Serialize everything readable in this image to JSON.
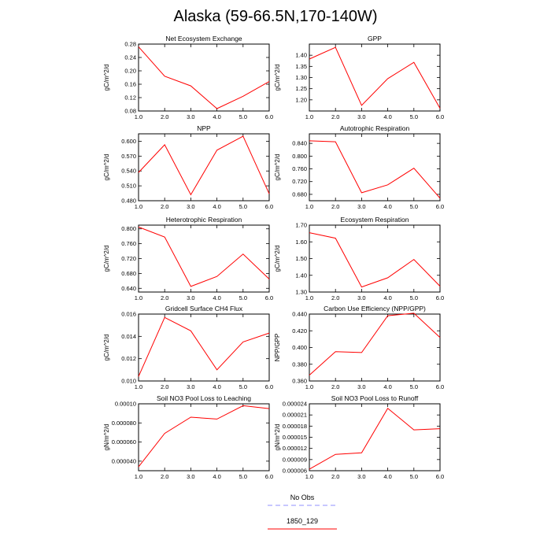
{
  "title": "Alaska (59-66.5N,170-140W)",
  "colors": {
    "series": "#ff0000",
    "no_obs": "#8f8fff",
    "axis": "#000000"
  },
  "legend": {
    "entries": [
      {
        "label": "No Obs",
        "color": "#8f8fff",
        "style": "dashed"
      },
      {
        "label": "1850_129",
        "color": "#ff0000",
        "style": "solid"
      }
    ]
  },
  "chart_data": [
    {
      "type": "line",
      "title": "Net Ecosystem Exchange",
      "ylabel": "gC/m^2/d",
      "x": [
        1,
        2,
        3,
        4,
        5,
        6
      ],
      "xlim": [
        1,
        6
      ],
      "xticks": [
        "1.0",
        "2.0",
        "3.0",
        "4.0",
        "5.0",
        "6.0"
      ],
      "ylim": [
        0.08,
        0.28
      ],
      "yticks": [
        "0.08",
        "0.12",
        "0.16",
        "0.20",
        "0.24",
        "0.28"
      ],
      "series": [
        {
          "name": "1850_129",
          "values": [
            0.272,
            0.184,
            0.155,
            0.087,
            0.124,
            0.168
          ]
        }
      ]
    },
    {
      "type": "line",
      "title": "GPP",
      "ylabel": "gC/m^2/d",
      "x": [
        1,
        2,
        3,
        4,
        5,
        6
      ],
      "xlim": [
        1,
        6
      ],
      "xticks": [
        "1.0",
        "2.0",
        "3.0",
        "4.0",
        "5.0",
        "6.0"
      ],
      "ylim": [
        1.15,
        1.45
      ],
      "yticks": [
        "1.20",
        "1.25",
        "1.30",
        "1.35",
        "1.40"
      ],
      "series": [
        {
          "name": "1850_129",
          "values": [
            1.383,
            1.435,
            1.175,
            1.295,
            1.368,
            1.162
          ]
        }
      ]
    },
    {
      "type": "line",
      "title": "NPP",
      "ylabel": "gC/m^2/d",
      "x": [
        1,
        2,
        3,
        4,
        5,
        6
      ],
      "xlim": [
        1,
        6
      ],
      "xticks": [
        "1.0",
        "2.0",
        "3.0",
        "4.0",
        "5.0",
        "6.0"
      ],
      "ylim": [
        0.48,
        0.615
      ],
      "yticks": [
        "0.480",
        "0.510",
        "0.540",
        "0.570",
        "0.600"
      ],
      "series": [
        {
          "name": "1850_129",
          "values": [
            0.537,
            0.593,
            0.492,
            0.582,
            0.61,
            0.494
          ]
        }
      ]
    },
    {
      "type": "line",
      "title": "Autotrophic Respiration",
      "ylabel": "gC/m^2/d",
      "x": [
        1,
        2,
        3,
        4,
        5,
        6
      ],
      "xlim": [
        1,
        6
      ],
      "xticks": [
        "1.0",
        "2.0",
        "3.0",
        "4.0",
        "5.0",
        "6.0"
      ],
      "ylim": [
        0.66,
        0.87
      ],
      "yticks": [
        "0.680",
        "0.720",
        "0.760",
        "0.800",
        "0.840"
      ],
      "series": [
        {
          "name": "1850_129",
          "values": [
            0.848,
            0.845,
            0.685,
            0.71,
            0.762,
            0.668
          ]
        }
      ]
    },
    {
      "type": "line",
      "title": "Heterotrophic Respiration",
      "ylabel": "gC/m^2/d",
      "x": [
        1,
        2,
        3,
        4,
        5,
        6
      ],
      "xlim": [
        1,
        6
      ],
      "xticks": [
        "1.0",
        "2.0",
        "3.0",
        "4.0",
        "5.0",
        "6.0"
      ],
      "ylim": [
        0.63,
        0.81
      ],
      "yticks": [
        "0.640",
        "0.680",
        "0.720",
        "0.760",
        "0.800"
      ],
      "series": [
        {
          "name": "1850_129",
          "values": [
            0.805,
            0.778,
            0.645,
            0.672,
            0.732,
            0.665
          ]
        }
      ]
    },
    {
      "type": "line",
      "title": "Ecosystem Respiration",
      "ylabel": "gC/m^2/d",
      "x": [
        1,
        2,
        3,
        4,
        5,
        6
      ],
      "xlim": [
        1,
        6
      ],
      "xticks": [
        "1.0",
        "2.0",
        "3.0",
        "4.0",
        "5.0",
        "6.0"
      ],
      "ylim": [
        1.3,
        1.7
      ],
      "yticks": [
        "1.30",
        "1.40",
        "1.50",
        "1.60",
        "1.70"
      ],
      "series": [
        {
          "name": "1850_129",
          "values": [
            1.655,
            1.622,
            1.33,
            1.385,
            1.495,
            1.335
          ]
        }
      ]
    },
    {
      "type": "line",
      "title": "Gridcell Surface CH4 Flux",
      "ylabel": "gC/m^2/d",
      "x": [
        1,
        2,
        3,
        4,
        5,
        6
      ],
      "xlim": [
        1,
        6
      ],
      "xticks": [
        "1.0",
        "2.0",
        "3.0",
        "4.0",
        "5.0",
        "6.0"
      ],
      "ylim": [
        0.01,
        0.016
      ],
      "yticks": [
        "0.010",
        "0.012",
        "0.014",
        "0.016"
      ],
      "series": [
        {
          "name": "1850_129",
          "values": [
            0.0104,
            0.0157,
            0.0145,
            0.011,
            0.0135,
            0.0143
          ]
        }
      ]
    },
    {
      "type": "line",
      "title": "Carbon Use Efficiency (NPP/GPP)",
      "ylabel": "NPP/GPP",
      "x": [
        1,
        2,
        3,
        4,
        5,
        6
      ],
      "xlim": [
        1,
        6
      ],
      "xticks": [
        "1.0",
        "2.0",
        "3.0",
        "4.0",
        "5.0",
        "6.0"
      ],
      "ylim": [
        0.36,
        0.44
      ],
      "yticks": [
        "0.360",
        "0.380",
        "0.400",
        "0.420",
        "0.440"
      ],
      "series": [
        {
          "name": "1850_129",
          "values": [
            0.367,
            0.395,
            0.394,
            0.438,
            0.441,
            0.412
          ]
        }
      ]
    },
    {
      "type": "line",
      "title": "Soil NO3 Pool Loss to Leaching",
      "ylabel": "gN/m^2/d",
      "x": [
        1,
        2,
        3,
        4,
        5,
        6
      ],
      "xlim": [
        1,
        6
      ],
      "xticks": [
        "1.0",
        "2.0",
        "3.0",
        "4.0",
        "5.0",
        "6.0"
      ],
      "ylim": [
        3e-05,
        0.0001
      ],
      "yticks": [
        "0.000040",
        "0.000060",
        "0.000080",
        "0.00010"
      ],
      "series": [
        {
          "name": "1850_129",
          "values": [
            3.4e-05,
            6.9e-05,
            8.6e-05,
            8.4e-05,
            9.8e-05,
            9.5e-05
          ]
        }
      ]
    },
    {
      "type": "line",
      "title": "Soil NO3 Pool Loss to Runoff",
      "ylabel": "gN/m^2/d",
      "x": [
        1,
        2,
        3,
        4,
        5,
        6
      ],
      "xlim": [
        1,
        6
      ],
      "xticks": [
        "1.0",
        "2.0",
        "3.0",
        "4.0",
        "5.0",
        "6.0"
      ],
      "ylim": [
        6e-06,
        2.4e-05
      ],
      "yticks": [
        "0.000006",
        "0.000009",
        "0.000012",
        "0.000015",
        "0.000018",
        "0.000021",
        "0.000024"
      ],
      "series": [
        {
          "name": "1850_129",
          "values": [
            6.4e-06,
            1.04e-05,
            1.08e-05,
            2.28e-05,
            1.7e-05,
            1.73e-05
          ]
        }
      ]
    }
  ]
}
